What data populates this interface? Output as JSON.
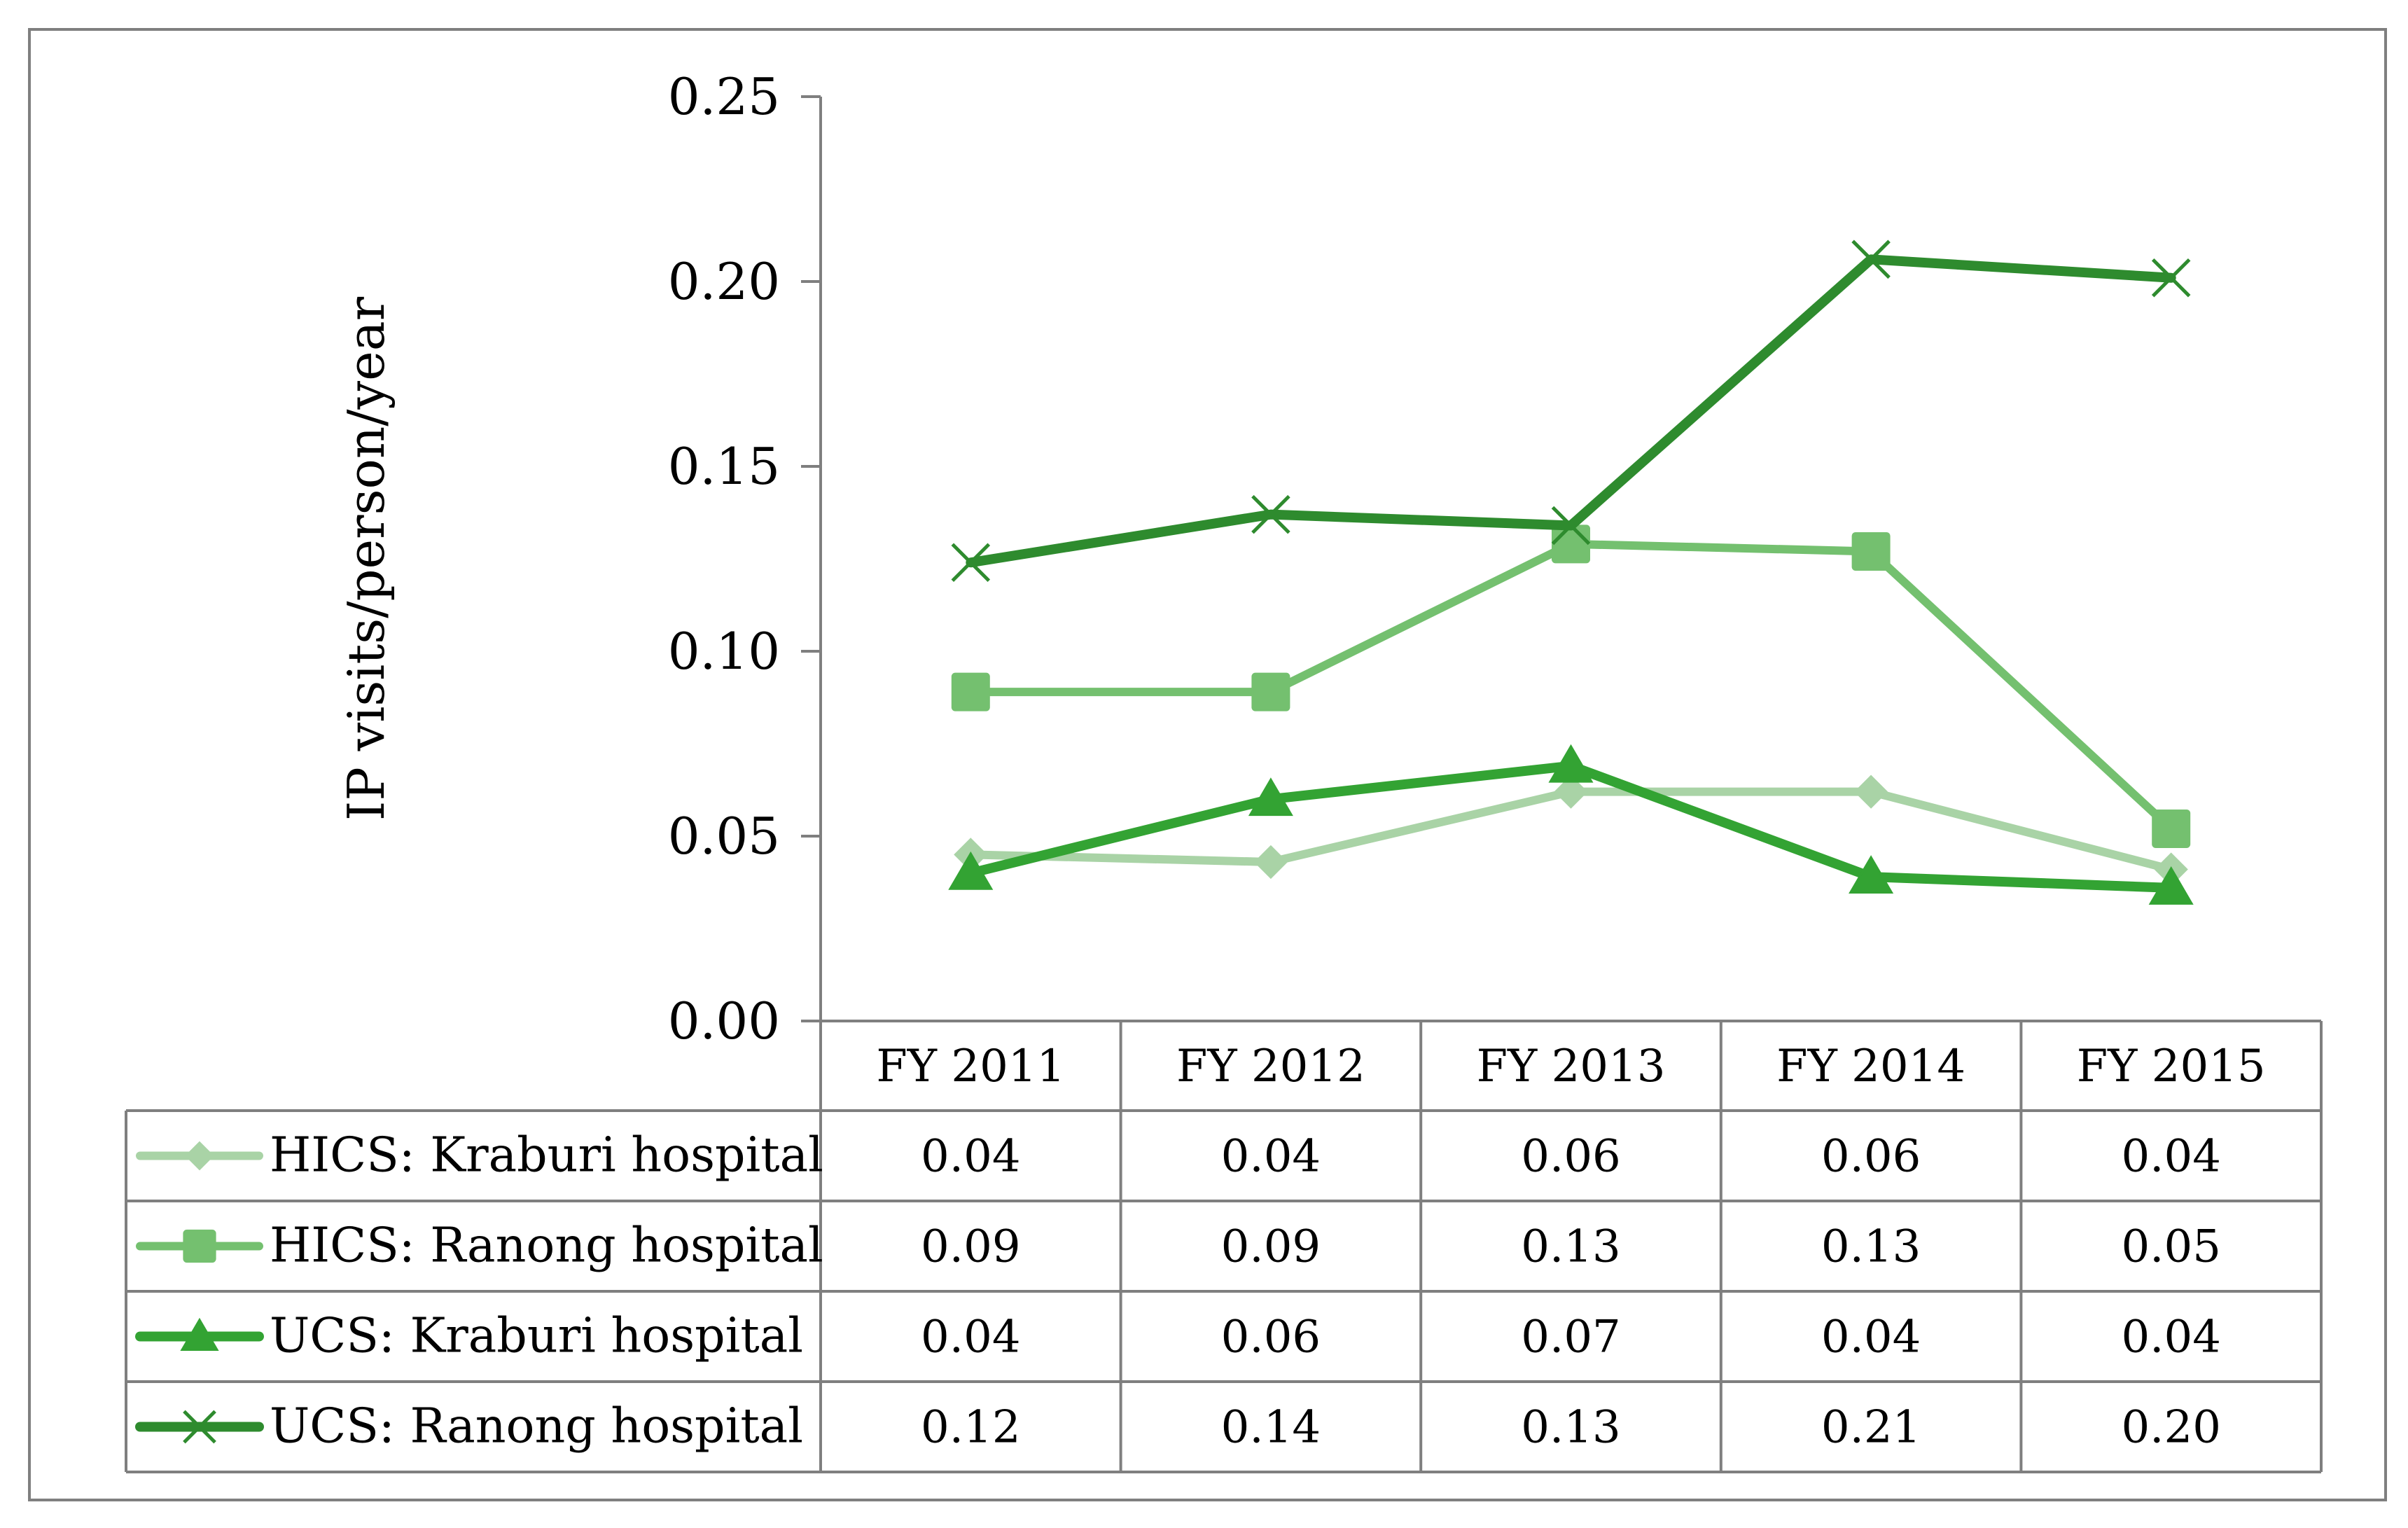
{
  "chart_data": {
    "type": "line",
    "title": "",
    "xlabel": "",
    "ylabel": "IP visits/person/year",
    "ylim": [
      0,
      0.25
    ],
    "yticks": [
      "0.00",
      "0.05",
      "0.10",
      "0.15",
      "0.20",
      "0.25"
    ],
    "categories": [
      "FY 2011",
      "FY 2012",
      "FY 2013",
      "FY 2014",
      "FY 2015"
    ],
    "series": [
      {
        "name": "HICS: Kraburi hospital",
        "values": [
          0.045,
          0.043,
          0.062,
          0.062,
          0.041
        ],
        "table_values": [
          "0.04",
          "0.04",
          "0.06",
          "0.06",
          "0.04"
        ],
        "color": "#a9d3a6",
        "marker": "diamond"
      },
      {
        "name": "HICS: Ranong hospital",
        "values": [
          0.089,
          0.089,
          0.129,
          0.127,
          0.052
        ],
        "table_values": [
          "0.09",
          "0.09",
          "0.13",
          "0.13",
          "0.05"
        ],
        "color": "#74c06f",
        "marker": "square"
      },
      {
        "name": "UCS: Kraburi hospital",
        "values": [
          0.04,
          0.06,
          0.069,
          0.039,
          0.036
        ],
        "table_values": [
          "0.04",
          "0.06",
          "0.07",
          "0.04",
          "0.04"
        ],
        "color": "#33a333",
        "marker": "triangle"
      },
      {
        "name": "UCS: Ranong hospital",
        "values": [
          0.124,
          0.137,
          0.134,
          0.206,
          0.201
        ],
        "table_values": [
          "0.12",
          "0.14",
          "0.13",
          "0.21",
          "0.20"
        ],
        "color": "#2e8b2e",
        "marker": "x"
      }
    ],
    "data_table": true,
    "grid": false,
    "legend": "in data table"
  }
}
